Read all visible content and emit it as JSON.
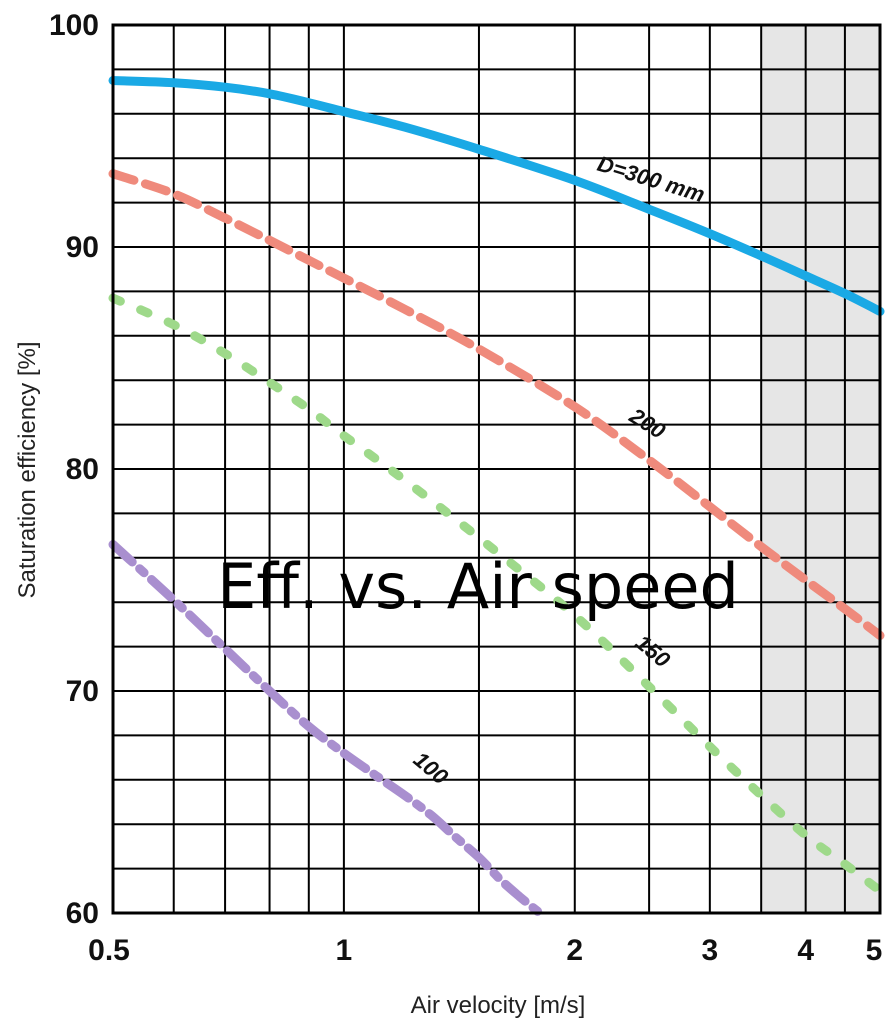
{
  "chart_data": {
    "type": "line",
    "title": "Eff. vs. Air speed",
    "xlabel": "Air velocity [m/s]",
    "ylabel": "Saturation efficiency  [%]",
    "xscale": "log",
    "xlim": [
      0.5,
      5
    ],
    "ylim": [
      60,
      100
    ],
    "x_ticks": [
      0.5,
      1,
      2,
      3,
      4,
      5
    ],
    "x_tick_labels": [
      "0.5",
      "1",
      "2",
      "3",
      "4",
      "5"
    ],
    "y_ticks": [
      60,
      70,
      80,
      90,
      100
    ],
    "y_tick_labels": [
      "60",
      "70",
      "80",
      "90",
      "100"
    ],
    "grid": true,
    "shaded_region_x": [
      3.5,
      5
    ],
    "series": [
      {
        "name": "D=300 mm",
        "color": "#1aa9e5",
        "style": "solid",
        "x": [
          0.5,
          0.6,
          0.7,
          0.8,
          0.9,
          1.0,
          1.2,
          1.5,
          2.0,
          2.5,
          3.0,
          3.5,
          4.0,
          4.5,
          5.0
        ],
        "y": [
          97.5,
          97.4,
          97.2,
          96.9,
          96.5,
          96.1,
          95.4,
          94.4,
          93.0,
          91.7,
          90.6,
          89.6,
          88.7,
          87.9,
          87.1
        ]
      },
      {
        "name": "200",
        "color": "#ef8a7c",
        "style": "dashed",
        "x": [
          0.5,
          0.6,
          0.7,
          0.8,
          0.9,
          1.0,
          1.2,
          1.5,
          2.0,
          2.5,
          3.0,
          3.5,
          4.0,
          4.5,
          5.0
        ],
        "y": [
          93.3,
          92.4,
          91.3,
          90.3,
          89.4,
          88.6,
          87.2,
          85.4,
          82.8,
          80.4,
          78.3,
          76.5,
          75.0,
          73.7,
          72.5
        ]
      },
      {
        "name": "150",
        "color": "#9ed98a",
        "style": "dotted",
        "x": [
          0.5,
          0.6,
          0.7,
          0.8,
          0.9,
          1.0,
          1.2,
          1.5,
          2.0,
          2.5,
          3.0,
          3.5,
          4.0,
          4.5,
          5.0
        ],
        "y": [
          87.7,
          86.5,
          85.2,
          83.9,
          82.7,
          81.5,
          79.5,
          76.9,
          73.4,
          70.2,
          67.5,
          65.3,
          63.5,
          62.2,
          61.0
        ]
      },
      {
        "name": "100",
        "color": "#a98fcf",
        "style": "dashdot",
        "x": [
          0.5,
          0.6,
          0.7,
          0.8,
          0.9,
          1.0,
          1.1,
          1.2,
          1.3,
          1.4,
          1.5,
          1.6,
          1.7,
          1.8
        ],
        "y": [
          76.6,
          74.1,
          71.9,
          70.0,
          68.4,
          67.2,
          66.2,
          65.3,
          64.4,
          63.4,
          62.5,
          61.5,
          60.7,
          60.0
        ]
      }
    ]
  }
}
